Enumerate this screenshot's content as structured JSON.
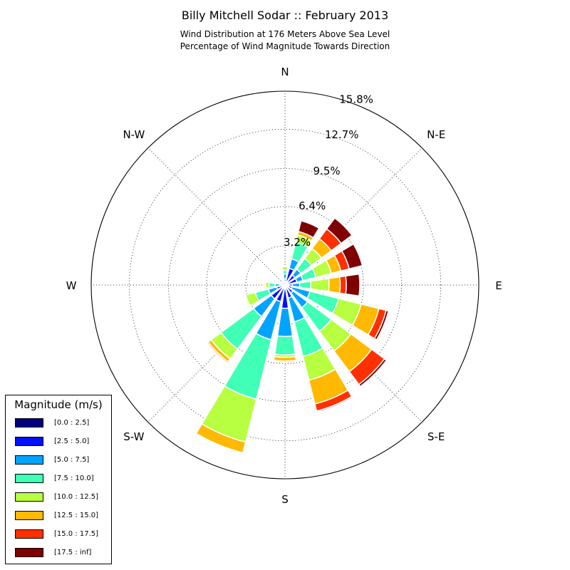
{
  "title": "Billy Mitchell Sodar :: February 2013",
  "subtitle_line1": "Wind Distribution at 176 Meters Above Sea Level",
  "subtitle_line2": "Percentage of Wind Magnitude Towards Direction",
  "legend": {
    "title": "Magnitude (m/s)",
    "items": [
      {
        "label": "[0.0 : 2.5]",
        "color": "#000080"
      },
      {
        "label": "[2.5 : 5.0]",
        "color": "#0010ff"
      },
      {
        "label": "[5.0 : 7.5]",
        "color": "#00a4ff"
      },
      {
        "label": "[7.5 : 10.0]",
        "color": "#40ffb7"
      },
      {
        "label": "[10.0 : 12.5]",
        "color": "#b7ff40"
      },
      {
        "label": "[12.5 : 15.0]",
        "color": "#ffb900"
      },
      {
        "label": "[15.0 : 17.5]",
        "color": "#ff3000"
      },
      {
        "label": "[17.5 : inf]",
        "color": "#800000"
      }
    ]
  },
  "chart_data": {
    "type": "wind-rose",
    "title": "Billy Mitchell Sodar :: February 2013",
    "radial_unit": "%",
    "radial_max": 15.8,
    "radial_ticks": [
      3.2,
      6.4,
      9.5,
      12.7,
      15.8
    ],
    "radial_tick_labels": [
      "3.2%",
      "6.4%",
      "9.5%",
      "12.7%",
      "15.8%"
    ],
    "direction_labels": [
      "N",
      "N-E",
      "E",
      "S-E",
      "S",
      "S-W",
      "W",
      "N-W"
    ],
    "bin_labels": [
      "[0.0 : 2.5]",
      "[2.5 : 5.0]",
      "[5.0 : 7.5]",
      "[7.5 : 10.0]",
      "[10.0 : 12.5]",
      "[12.5 : 15.0]",
      "[15.0 : 17.5]",
      "[17.5 : inf]"
    ],
    "grid": true,
    "legend_placement": "bottom-left",
    "sectors": [
      {
        "dir": 0,
        "values": [
          0.1,
          0.4,
          0.4,
          0.3,
          0.3,
          0.0,
          0.0,
          0.0
        ]
      },
      {
        "dir": 22.5,
        "values": [
          0.1,
          1.3,
          0.8,
          1.4,
          0.6,
          0.3,
          0.0,
          0.9
        ]
      },
      {
        "dir": 45,
        "values": [
          0.1,
          0.9,
          0.6,
          1.1,
          1.0,
          1.0,
          1.0,
          1.1
        ]
      },
      {
        "dir": 67.5,
        "values": [
          0.1,
          0.9,
          0.5,
          1.1,
          1.3,
          0.8,
          0.7,
          1.1
        ]
      },
      {
        "dir": 90,
        "values": [
          0.1,
          0.5,
          0.6,
          0.9,
          1.5,
          0.9,
          0.5,
          1.1
        ]
      },
      {
        "dir": 112.5,
        "values": [
          0.1,
          0.5,
          1.5,
          2.4,
          1.9,
          1.5,
          0.6,
          0.2
        ]
      },
      {
        "dir": 135,
        "values": [
          0.1,
          0.7,
          1.5,
          2.4,
          2.0,
          2.1,
          1.3,
          0.2
        ]
      },
      {
        "dir": 157.5,
        "values": [
          0.1,
          1.0,
          2.0,
          2.9,
          2.0,
          2.0,
          0.6,
          0.1
        ]
      },
      {
        "dir": 180,
        "values": [
          0.1,
          1.8,
          2.3,
          1.5,
          0.2,
          0.3,
          0.1,
          0.0
        ]
      },
      {
        "dir": 202.5,
        "values": [
          0.1,
          1.3,
          3.2,
          5.0,
          3.6,
          0.9,
          0.0,
          0.0
        ]
      },
      {
        "dir": 225,
        "values": [
          0.1,
          1.3,
          1.8,
          3.3,
          1.0,
          0.3,
          0.1,
          0.0
        ]
      },
      {
        "dir": 247.5,
        "values": [
          0.1,
          0.6,
          0.7,
          1.1,
          0.8,
          0.0,
          0.0,
          0.0
        ]
      },
      {
        "dir": 270,
        "values": [
          0.1,
          0.3,
          0.4,
          0.5,
          0.3,
          0.1,
          0.0,
          0.0
        ]
      },
      {
        "dir": 292.5,
        "values": [
          0.1,
          0.2,
          0.1,
          0.1,
          0.0,
          0.0,
          0.0,
          0.0
        ]
      },
      {
        "dir": 315,
        "values": [
          0.1,
          0.1,
          0.1,
          0.0,
          0.0,
          0.0,
          0.0,
          0.0
        ]
      },
      {
        "dir": 337.5,
        "values": [
          0.1,
          0.1,
          0.0,
          0.0,
          0.0,
          0.0,
          0.0,
          0.0
        ]
      }
    ]
  }
}
